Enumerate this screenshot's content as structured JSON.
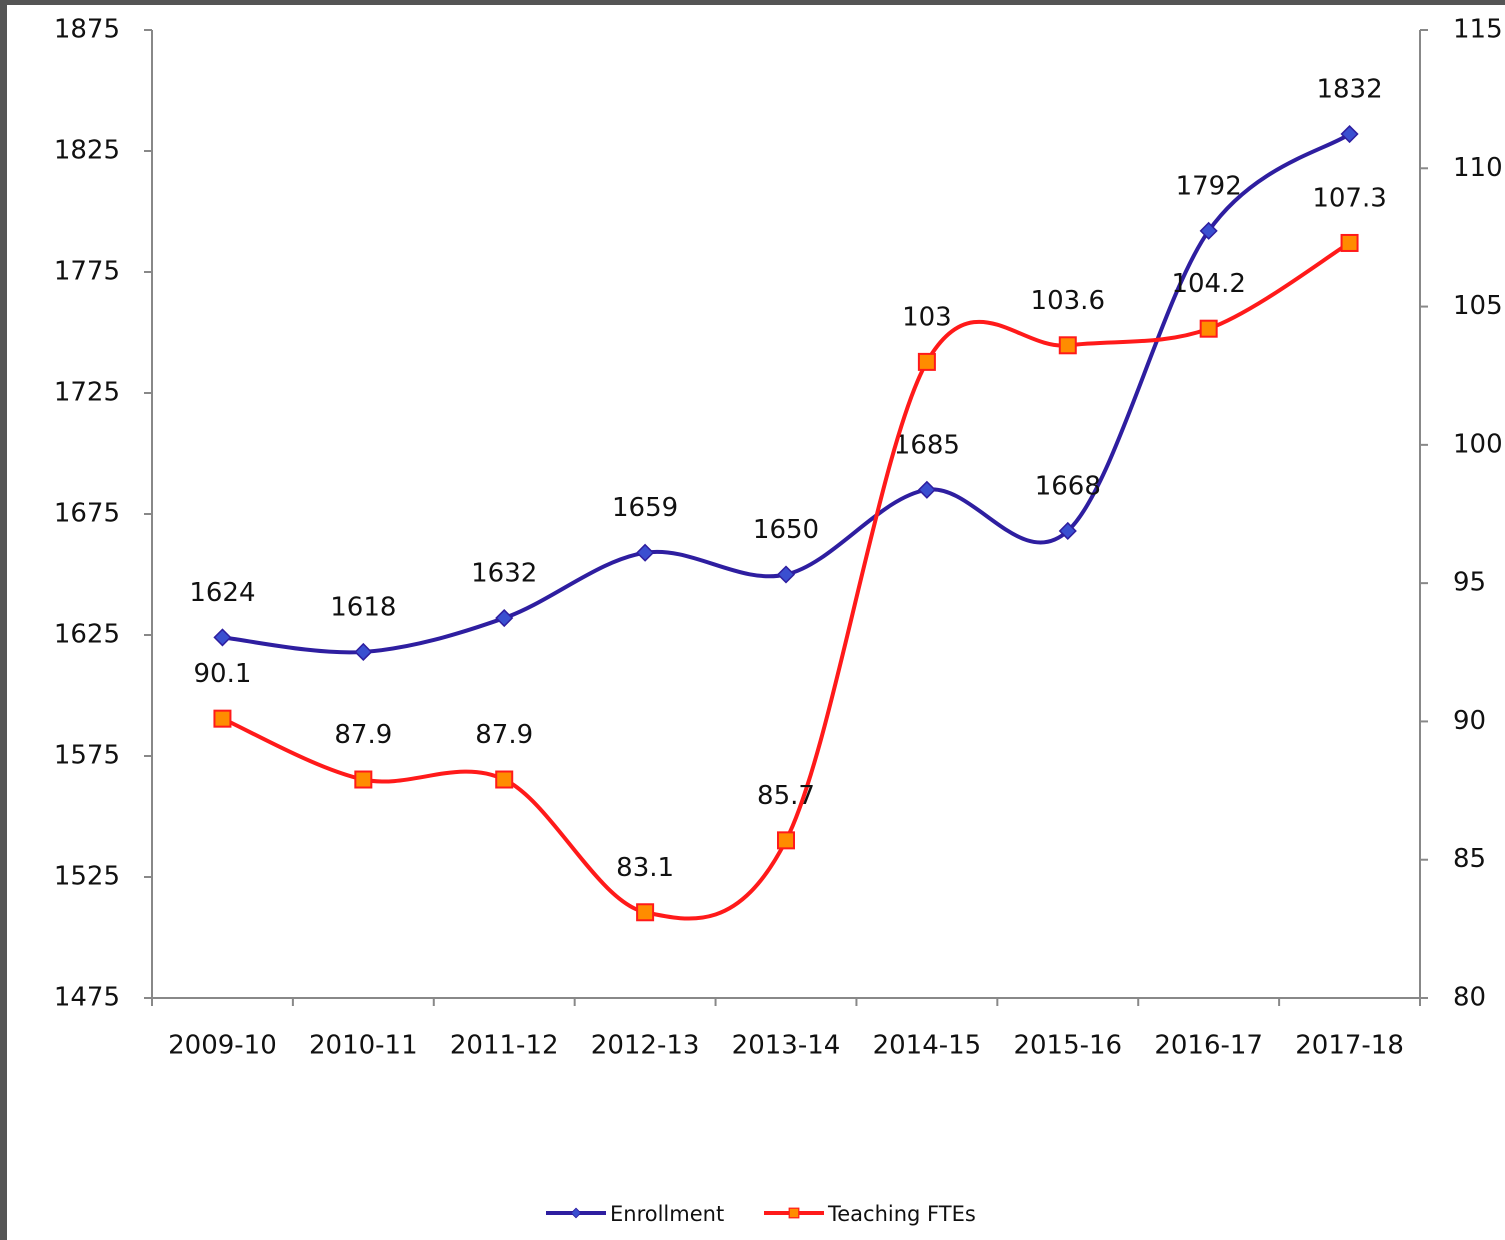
{
  "chart_data": {
    "type": "line",
    "categories": [
      "2009-10",
      "2010-11",
      "2011-12",
      "2012-13",
      "2013-14",
      "2014-15",
      "2015-16",
      "2016-17",
      "2017-18"
    ],
    "series": [
      {
        "name": "Enrollment",
        "color": "#2e1ea0",
        "marker": "diamond",
        "values": [
          1624,
          1618,
          1632,
          1659,
          1650,
          1685,
          1668,
          1792,
          1832
        ]
      },
      {
        "name": "Teaching FTEs",
        "color": "#ff1a1a",
        "marker": "square",
        "axis": "y2",
        "values": [
          90.1,
          87.9,
          87.9,
          83.1,
          85.7,
          103,
          103.6,
          104.2,
          107.3
        ]
      }
    ],
    "ylim": [
      1475,
      1875
    ],
    "yticks": [
      1475,
      1525,
      1575,
      1625,
      1675,
      1725,
      1775,
      1825,
      1875
    ],
    "y2lim": [
      80,
      115
    ],
    "y2ticks": [
      80,
      85,
      90,
      95,
      100,
      105,
      110,
      115
    ],
    "smooth": true,
    "legend": "bottom"
  }
}
